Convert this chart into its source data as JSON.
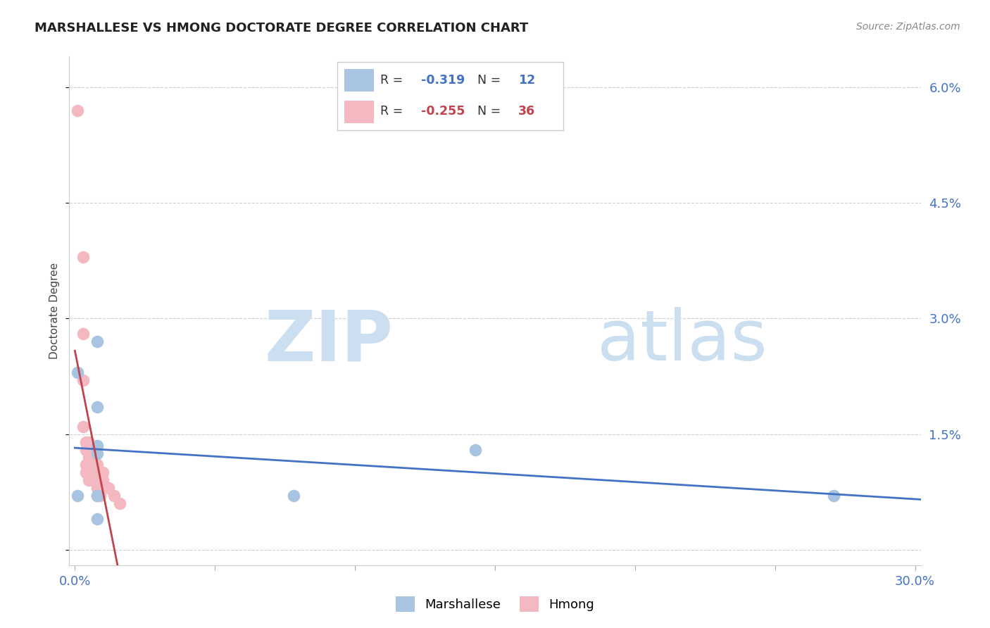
{
  "title": "MARSHALLESE VS HMONG DOCTORATE DEGREE CORRELATION CHART",
  "source": "Source: ZipAtlas.com",
  "ylabel": "Doctorate Degree",
  "xlim": [
    -0.002,
    0.302
  ],
  "ylim": [
    -0.002,
    0.064
  ],
  "xticks": [
    0.0,
    0.05,
    0.1,
    0.15,
    0.2,
    0.25,
    0.3
  ],
  "yticks": [
    0.0,
    0.015,
    0.03,
    0.045,
    0.06
  ],
  "ytick_labels": [
    "",
    "1.5%",
    "3.0%",
    "4.5%",
    "6.0%"
  ],
  "xtick_labels": [
    "0.0%",
    "",
    "",
    "",
    "",
    "",
    "30.0%"
  ],
  "marshallese_x": [
    0.008,
    0.001,
    0.008,
    0.143,
    0.271,
    0.008,
    0.001,
    0.008,
    0.008,
    0.078,
    0.008,
    0.008
  ],
  "marshallese_y": [
    0.027,
    0.023,
    0.0185,
    0.013,
    0.007,
    0.0135,
    0.007,
    0.0125,
    0.007,
    0.007,
    0.004,
    0.007
  ],
  "hmong_x": [
    0.001,
    0.003,
    0.003,
    0.003,
    0.003,
    0.004,
    0.004,
    0.004,
    0.004,
    0.005,
    0.005,
    0.005,
    0.005,
    0.005,
    0.006,
    0.006,
    0.006,
    0.007,
    0.007,
    0.007,
    0.007,
    0.007,
    0.008,
    0.008,
    0.008,
    0.008,
    0.009,
    0.009,
    0.009,
    0.009,
    0.01,
    0.01,
    0.01,
    0.012,
    0.014,
    0.016
  ],
  "hmong_y": [
    0.057,
    0.038,
    0.028,
    0.022,
    0.016,
    0.014,
    0.013,
    0.011,
    0.01,
    0.014,
    0.013,
    0.012,
    0.011,
    0.009,
    0.013,
    0.012,
    0.01,
    0.013,
    0.012,
    0.011,
    0.01,
    0.009,
    0.011,
    0.01,
    0.009,
    0.008,
    0.01,
    0.009,
    0.008,
    0.007,
    0.01,
    0.009,
    0.008,
    0.008,
    0.007,
    0.006
  ],
  "marshallese_color": "#a8c4e0",
  "hmong_color": "#f4b8c1",
  "marshallese_line_color": "#4472c4",
  "hmong_line_color": "#c0434d",
  "marshallese_R": "-0.319",
  "marshallese_N": "12",
  "hmong_R": "-0.255",
  "hmong_N": "36",
  "background_color": "#ffffff",
  "grid_color": "#d0d0d0",
  "tick_color": "#4472c4",
  "title_color": "#222222",
  "source_color": "#888888",
  "ylabel_color": "#444444",
  "watermark_zip": "ZIP",
  "watermark_atlas": "atlas",
  "watermark_color": "#ccdff0",
  "legend_marshallese": "Marshallese",
  "legend_hmong": "Hmong"
}
